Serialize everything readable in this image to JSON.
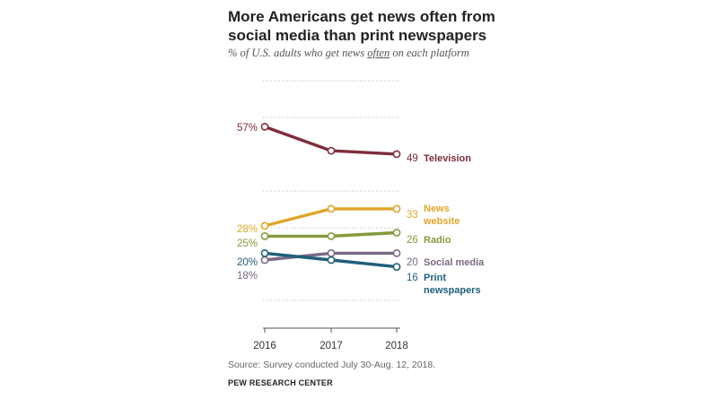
{
  "header": {
    "title_line1": "More Americans get news often from",
    "title_line2": "social media than print newspapers",
    "subtitle_pre": "% of U.S. adults who get news ",
    "subtitle_em": "often",
    "subtitle_post": " on each platform"
  },
  "chart_data": {
    "type": "line",
    "title": "More Americans get news often from social media than print newspapers",
    "subtitle": "% of U.S. adults who get news often on each platform",
    "x": [
      "2016",
      "2017",
      "2018"
    ],
    "ylim": [
      0,
      65
    ],
    "xlabel": "",
    "ylabel": "",
    "legend": "inline-right",
    "series": [
      {
        "name": "Television",
        "label_lines": [
          "Television"
        ],
        "values": [
          57,
          50,
          49
        ],
        "color": "#7f2d3c",
        "start_label": "57%",
        "end_label": "49"
      },
      {
        "name": "News website",
        "label_lines": [
          "News",
          "website"
        ],
        "values": [
          28,
          33,
          33
        ],
        "color": "#e0a528",
        "start_label": "28%",
        "end_label": "33"
      },
      {
        "name": "Radio",
        "label_lines": [
          "Radio"
        ],
        "values": [
          25,
          25,
          26
        ],
        "color": "#849a3c",
        "start_label": "25%",
        "end_label": "26"
      },
      {
        "name": "Social media",
        "label_lines": [
          "Social media"
        ],
        "values": [
          18,
          20,
          20
        ],
        "color": "#7b6a86",
        "start_label": "18%",
        "end_label": "20"
      },
      {
        "name": "Print newspapers",
        "label_lines": [
          "Print",
          "newspapers"
        ],
        "values": [
          20,
          18,
          16
        ],
        "color": "#1f5f7a",
        "start_label": "20%",
        "end_label": "16"
      }
    ]
  },
  "footer": {
    "source": "Source: Survey conducted July 30-Aug. 12, 2018.",
    "brand": "PEW RESEARCH CENTER"
  }
}
